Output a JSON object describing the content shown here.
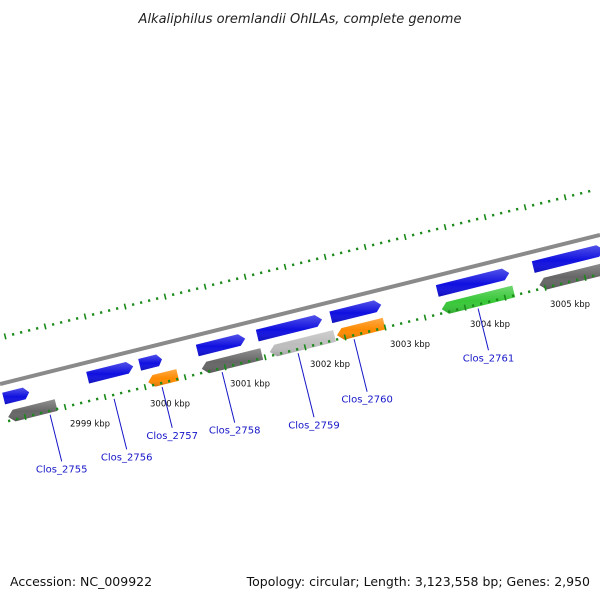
{
  "title": "Alkaliphilus oremlandii OhILAs, complete genome",
  "footer": {
    "accession": "Accession: NC_009922",
    "stats": "Topology: circular; Length: 3,123,558 bp; Genes: 2,950"
  },
  "colors": {
    "backbone": "#8a8a8a",
    "tick": "#1a8a1a",
    "forward_gene": "#1010e0",
    "reverse_gene_dark": "#666666",
    "reverse_gene_light": "#bdbdbd",
    "reverse_gene_orange": "#ff8a00",
    "reverse_gene_green": "#38c838",
    "label": "#1515c8"
  },
  "scale": {
    "start_kbp": 2998.3,
    "end_kbp": 3005.8,
    "labels": [
      {
        "kbp": 2999,
        "text": "2999 kbp"
      },
      {
        "kbp": 3000,
        "text": "3000 kbp"
      },
      {
        "kbp": 3001,
        "text": "3001 kbp"
      },
      {
        "kbp": 3002,
        "text": "3002 kbp"
      },
      {
        "kbp": 3003,
        "text": "3003 kbp"
      },
      {
        "kbp": 3004,
        "text": "3004 kbp"
      },
      {
        "kbp": 3005,
        "text": "3005 kbp"
      }
    ]
  },
  "genes": [
    {
      "name": "forward-gene-1",
      "strand": "+",
      "color": "forward_gene",
      "start": 2998.3,
      "end": 2998.62
    },
    {
      "name": "forward-gene-2",
      "strand": "+",
      "color": "forward_gene",
      "start": 2999.35,
      "end": 2999.92
    },
    {
      "name": "forward-gene-3",
      "strand": "+",
      "color": "forward_gene",
      "start": 3000.0,
      "end": 3000.28
    },
    {
      "name": "forward-gene-4",
      "strand": "+",
      "color": "forward_gene",
      "start": 3000.72,
      "end": 3001.32
    },
    {
      "name": "forward-gene-5",
      "strand": "+",
      "color": "forward_gene",
      "start": 3001.47,
      "end": 3002.28
    },
    {
      "name": "forward-gene-6",
      "strand": "+",
      "color": "forward_gene",
      "start": 3002.39,
      "end": 3003.02
    },
    {
      "name": "forward-gene-7",
      "strand": "+",
      "color": "forward_gene",
      "start": 3003.72,
      "end": 3004.62
    },
    {
      "name": "forward-gene-8",
      "strand": "+",
      "color": "forward_gene",
      "start": 3004.92,
      "end": 3005.8
    },
    {
      "name": "reverse-gene-1",
      "strand": "-",
      "color": "reverse_gene_dark",
      "start": 2998.3,
      "end": 2998.9
    },
    {
      "name": "reverse-gene-2",
      "strand": "-",
      "color": "reverse_gene_orange",
      "start": 3000.05,
      "end": 3000.42
    },
    {
      "name": "reverse-gene-3",
      "strand": "-",
      "color": "reverse_gene_dark",
      "start": 3000.72,
      "end": 3001.47
    },
    {
      "name": "reverse-gene-4",
      "strand": "-",
      "color": "reverse_gene_light",
      "start": 3001.57,
      "end": 3002.38
    },
    {
      "name": "reverse-gene-5",
      "strand": "-",
      "color": "reverse_gene_orange",
      "start": 3002.41,
      "end": 3003.0
    },
    {
      "name": "reverse-gene-6",
      "strand": "-",
      "color": "reverse_gene_green",
      "start": 3003.72,
      "end": 3004.62
    },
    {
      "name": "reverse-gene-7",
      "strand": "-",
      "color": "reverse_gene_dark",
      "start": 3004.94,
      "end": 3005.8
    }
  ],
  "gene_labels": [
    {
      "text": "Clos_2755",
      "kbp": 2998.8
    },
    {
      "text": "Clos_2756",
      "kbp": 2999.6
    },
    {
      "text": "Clos_2757",
      "kbp": 3000.2
    },
    {
      "text": "Clos_2758",
      "kbp": 3000.95
    },
    {
      "text": "Clos_2759",
      "kbp": 3001.9
    },
    {
      "text": "Clos_2760",
      "kbp": 3002.6
    },
    {
      "text": "Clos_2761",
      "kbp": 3004.15
    }
  ]
}
